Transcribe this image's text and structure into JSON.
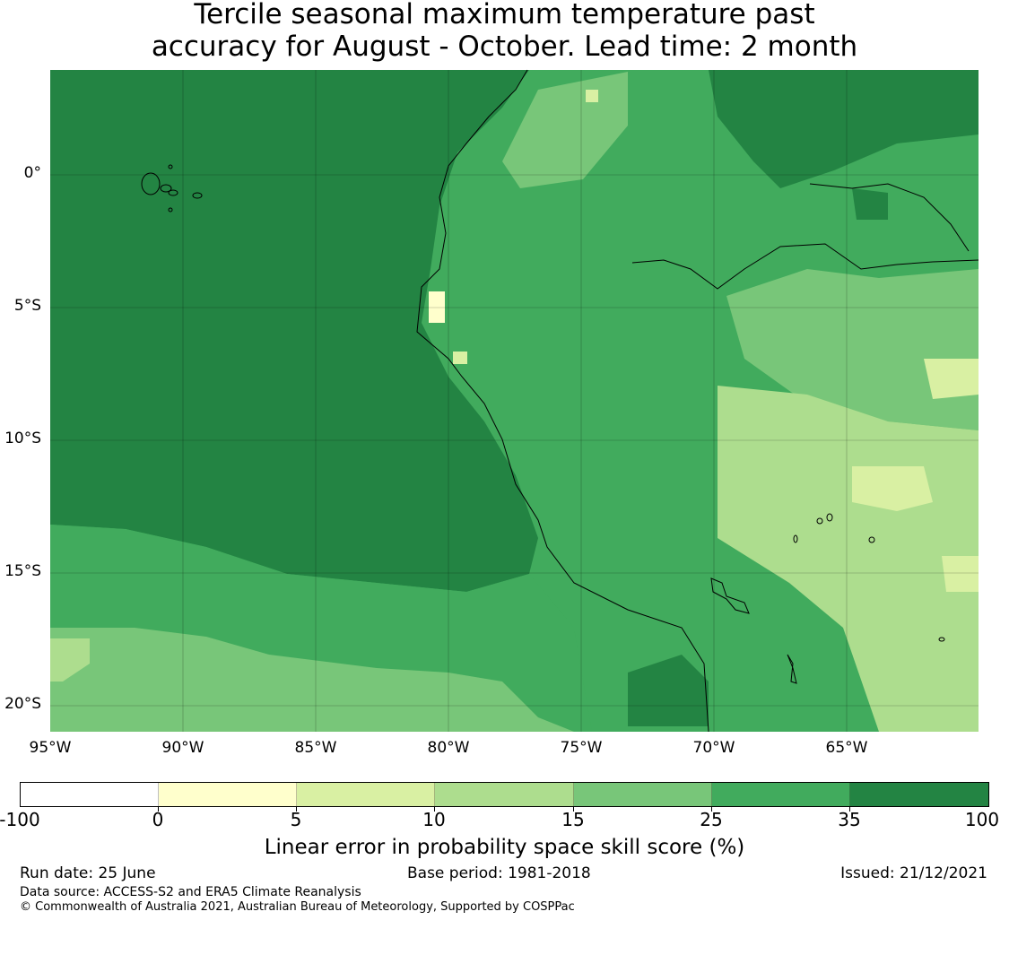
{
  "title_line1": "Tercile seasonal maximum temperature past",
  "title_line2": "accuracy for August - October. Lead time: 2 month",
  "map": {
    "lon_range": [
      -95,
      -60
    ],
    "lat_range": [
      3.9,
      -21
    ],
    "lat_labels": [
      "0°",
      "5°S",
      "10°S",
      "15°S",
      "20°S"
    ],
    "lat_values": [
      0,
      -5,
      -10,
      -15,
      -20
    ],
    "lon_labels": [
      "95°W",
      "90°W",
      "85°W",
      "80°W",
      "75°W",
      "70°W",
      "65°W"
    ],
    "lon_values": [
      -95,
      -90,
      -85,
      -80,
      -75,
      -70,
      -65
    ]
  },
  "colorbar": {
    "ticks": [
      "-100",
      "0",
      "5",
      "10",
      "15",
      "25",
      "35",
      "100"
    ],
    "colors": [
      "#ffffff",
      "#ffffcc",
      "#d9f0a3",
      "#addd8e",
      "#78c679",
      "#41ab5d",
      "#238443"
    ],
    "label": "Linear error in probability space skill score (%)"
  },
  "footer": {
    "run_date": "Run date: 25 June",
    "base_period": "Base period: 1981-2018",
    "issued": "Issued: 21/12/2021",
    "data_source": "Data source: ACCESS-S2 and ERA5 Climate Reanalysis",
    "copyright": "© Commonwealth of Australia 2021, Australian Bureau of Meteorology, Supported by COSPPac"
  }
}
